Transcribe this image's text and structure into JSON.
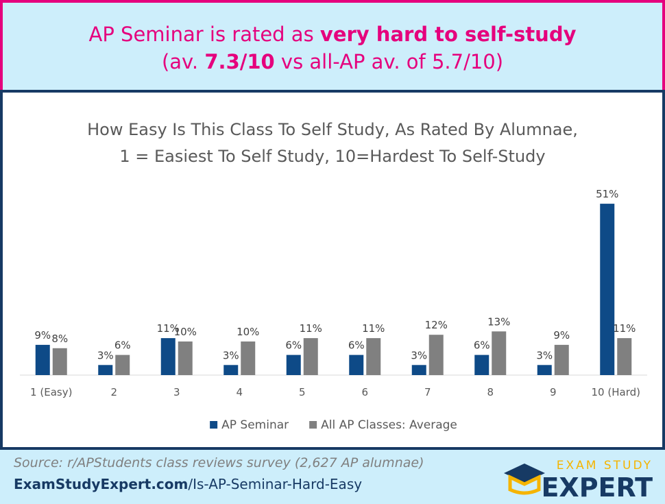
{
  "header": {
    "line1": [
      "AP Seminar is rated as ",
      "very hard to self-study"
    ],
    "line2": [
      "(av. ",
      "7.3/10",
      " vs all-AP av. of 5.7/10)"
    ]
  },
  "chart_data": {
    "type": "bar",
    "title": [
      "How Easy Is This Class To Self Study, As Rated By Alumnae,",
      "1 = Easiest To Self Study, 10=Hardest To Self-Study"
    ],
    "categories": [
      "1 (Easy)",
      "2",
      "3",
      "4",
      "5",
      "6",
      "7",
      "8",
      "9",
      "10 (Hard)"
    ],
    "series": [
      {
        "name": "AP Seminar",
        "color": "#0e4a87",
        "values": [
          9,
          3,
          11,
          3,
          6,
          6,
          3,
          6,
          3,
          51
        ],
        "value_labels": [
          "9%",
          "3%",
          "11%",
          "3%",
          "6%",
          "6%",
          "3%",
          "6%",
          "3%",
          "51%"
        ]
      },
      {
        "name": "All AP Classes: Average",
        "color": "#808080",
        "values": [
          8,
          6,
          10,
          10,
          11,
          11,
          12,
          13,
          9,
          11
        ],
        "value_labels": [
          "8%",
          "6%",
          "10%",
          "10%",
          "11%",
          "11%",
          "12%",
          "13%",
          "9%",
          "11%"
        ]
      }
    ],
    "legend": "bottom"
  },
  "footer": {
    "source": "Source: r/APStudents class reviews survey (2,627 AP alumnae)",
    "link": [
      "ExamStudyExpert.com",
      "/Is-AP-Seminar-Hard-Easy"
    ],
    "logo": [
      "EXAM STUDY",
      "EXPERT"
    ]
  }
}
